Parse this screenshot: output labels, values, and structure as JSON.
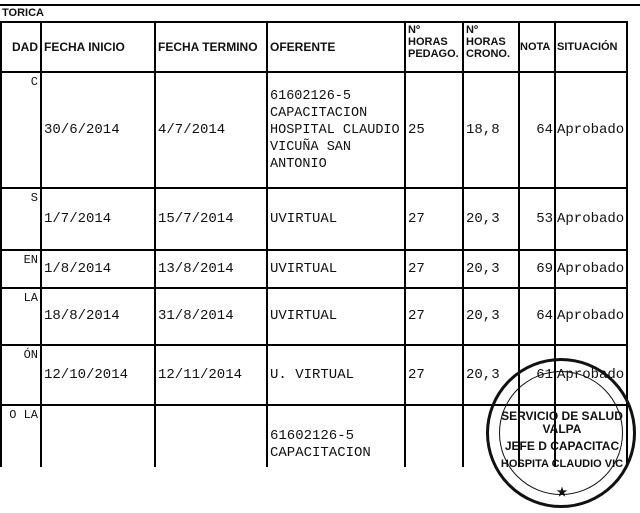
{
  "section_title": "TORICA",
  "headers": [
    "DAD",
    "FECHA INICIO",
    "FECHA TERMINO",
    "OFERENTE",
    "Nº HORAS PEDAGO.",
    "Nº HORAS CRONO.",
    "NOTA",
    "SITUACIÓN"
  ],
  "rows": [
    {
      "actividad": "C",
      "inicio": "30/6/2014",
      "termino": "4/7/2014",
      "oferente": "61602126-5 CAPACITACION HOSPITAL CLAUDIO VICUÑA SAN ANTONIO",
      "pedago": "25",
      "crono": "18,8",
      "nota": "64",
      "situacion": "Aprobado"
    },
    {
      "actividad": "S",
      "inicio": "1/7/2014",
      "termino": "15/7/2014",
      "oferente": "UVIRTUAL",
      "pedago": "27",
      "crono": "20,3",
      "nota": "53",
      "situacion": "Aprobado"
    },
    {
      "actividad": "EN",
      "inicio": "1/8/2014",
      "termino": "13/8/2014",
      "oferente": "UVIRTUAL",
      "pedago": "27",
      "crono": "20,3",
      "nota": "69",
      "situacion": "Aprobado"
    },
    {
      "actividad": "LA",
      "inicio": "18/8/2014",
      "termino": "31/8/2014",
      "oferente": "UVIRTUAL",
      "pedago": "27",
      "crono": "20,3",
      "nota": "64",
      "situacion": "Aprobado"
    },
    {
      "actividad": "ÓN",
      "inicio": "12/10/2014",
      "termino": "12/11/2014",
      "oferente": "U. VIRTUAL",
      "pedago": "27",
      "crono": "20,3",
      "nota": "61",
      "situacion": "Aprobado"
    },
    {
      "actividad": "O LA",
      "inicio": "",
      "termino": "",
      "oferente": "61602126-5 CAPACITACION",
      "pedago": "",
      "crono": "",
      "nota": "",
      "situacion": ""
    }
  ],
  "stamp": {
    "top": "SERVICIO DE SALUD VALPA",
    "middle": "JEFE D CAPACITAC",
    "bottom": "HOSPITA CLAUDIO VIC",
    "star": "★"
  }
}
